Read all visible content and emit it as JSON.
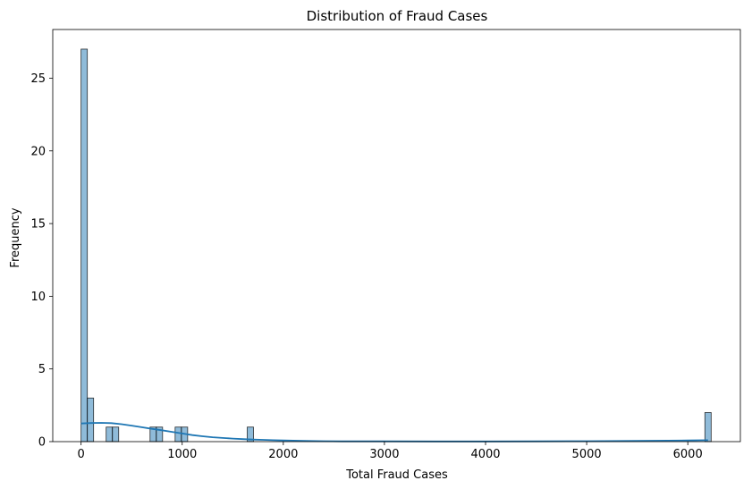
{
  "chart_data": {
    "type": "histogram",
    "title": "Distribution of Fraud Cases",
    "xlabel": "Total Fraud Cases",
    "ylabel": "Frequency",
    "xlim": [
      -280,
      6520
    ],
    "ylim": [
      0,
      28.35
    ],
    "xticks": [
      0,
      1000,
      2000,
      3000,
      4000,
      5000,
      6000
    ],
    "yticks": [
      0,
      5,
      10,
      15,
      20,
      25
    ],
    "bin_width": 62,
    "bins": [
      {
        "x0": 0,
        "count": 27
      },
      {
        "x0": 62,
        "count": 3
      },
      {
        "x0": 248,
        "count": 1
      },
      {
        "x0": 310,
        "count": 1
      },
      {
        "x0": 682,
        "count": 1
      },
      {
        "x0": 744,
        "count": 1
      },
      {
        "x0": 930,
        "count": 1
      },
      {
        "x0": 992,
        "count": 1
      },
      {
        "x0": 1643,
        "count": 1
      },
      {
        "x0": 6169,
        "count": 2
      }
    ],
    "kde": {
      "x": [
        0,
        100,
        200,
        300,
        400,
        500,
        600,
        700,
        800,
        900,
        1000,
        1100,
        1200,
        1300,
        1400,
        1500,
        1600,
        1700,
        1800,
        1900,
        2000,
        2200,
        2400,
        2600,
        2800,
        3000,
        3500,
        4000,
        4500,
        5000,
        5500,
        5800,
        6000,
        6200
      ],
      "y": [
        1.25,
        1.28,
        1.29,
        1.27,
        1.2,
        1.1,
        0.99,
        0.88,
        0.78,
        0.67,
        0.56,
        0.45,
        0.37,
        0.3,
        0.25,
        0.21,
        0.17,
        0.14,
        0.12,
        0.1,
        0.08,
        0.05,
        0.03,
        0.02,
        0.02,
        0.02,
        0.01,
        0.01,
        0.02,
        0.03,
        0.05,
        0.07,
        0.08,
        0.1
      ]
    },
    "bar_color": "#1f77b4",
    "bar_fill_opacity": 0.5,
    "kde_color": "#1f77b4",
    "grid": false,
    "legend": "none"
  }
}
